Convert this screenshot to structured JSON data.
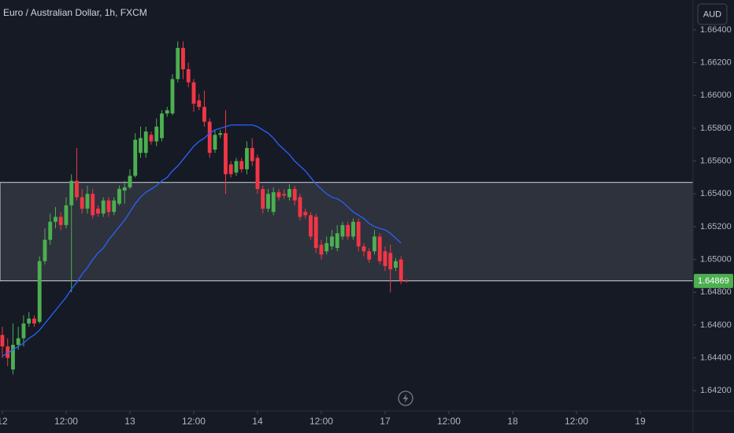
{
  "chart_data": {
    "type": "candlestick",
    "title": "Euro / Australian Dollar, 1h, FXCM",
    "currency": "AUD",
    "up_color": "#4caf50",
    "down_color": "#f23645",
    "xlim": [
      -0.44,
      129.93
    ],
    "xticks": [
      {
        "value": 0,
        "label": "12"
      },
      {
        "value": 12,
        "label": "12:00"
      },
      {
        "value": 24,
        "label": "13"
      },
      {
        "value": 36,
        "label": "12:00"
      },
      {
        "value": 48,
        "label": "14"
      },
      {
        "value": 60,
        "label": "12:00"
      },
      {
        "value": 72,
        "label": "17"
      },
      {
        "value": 84,
        "label": "12:00"
      },
      {
        "value": 96,
        "label": "18"
      },
      {
        "value": 108,
        "label": "12:00"
      },
      {
        "value": 120,
        "label": "19"
      }
    ],
    "ylim": [
      1.64096,
      1.66582
    ],
    "yticks": [
      {
        "value": 1.642,
        "label": "1.64200"
      },
      {
        "value": 1.644,
        "label": "1.64400"
      },
      {
        "value": 1.646,
        "label": "1.64600"
      },
      {
        "value": 1.648,
        "label": "1.64800"
      },
      {
        "value": 1.65,
        "label": "1.65000"
      },
      {
        "value": 1.652,
        "label": "1.65200"
      },
      {
        "value": 1.654,
        "label": "1.65400"
      },
      {
        "value": 1.656,
        "label": "1.65600"
      },
      {
        "value": 1.658,
        "label": "1.65800"
      },
      {
        "value": 1.66,
        "label": "1.66000"
      },
      {
        "value": 1.662,
        "label": "1.66200"
      },
      {
        "value": 1.664,
        "label": "1.66400"
      }
    ],
    "open": [
      1.6454,
      1.6447,
      1.6433,
      1.6448,
      1.6452,
      1.6461,
      1.6464,
      1.6462,
      1.6499,
      1.6512,
      1.6523,
      1.6526,
      1.6521,
      1.6533,
      1.6548,
      1.6538,
      1.6531,
      1.654,
      1.6531,
      1.6528,
      1.6536,
      1.6529,
      1.6534,
      1.6542,
      1.6544,
      1.6551,
      1.6565,
      1.6565,
      1.6576,
      1.6572,
      1.6574,
      1.6589,
      1.6589,
      1.661,
      1.6629,
      1.6616,
      1.6608,
      1.6597,
      1.6593,
      1.6584,
      1.6567,
      1.6576,
      1.6577,
      1.6558,
      1.6553,
      1.656,
      1.6555,
      1.6568,
      1.6562,
      1.6543,
      1.6531,
      1.6529,
      1.6541,
      1.654,
      1.6538,
      1.6543,
      1.6538,
      1.6529,
      1.6527,
      1.6526,
      1.6509,
      1.6505,
      1.6508,
      1.6507,
      1.6514,
      1.6521,
      1.6514,
      1.6523,
      1.6508,
      1.6505,
      1.6505,
      1.6514,
      1.6505,
      1.6504,
      1.6495,
      1.65,
      1.6487
    ],
    "high": [
      1.6459,
      1.6452,
      1.6461,
      1.6459,
      1.6466,
      1.6468,
      1.6466,
      1.6502,
      1.6519,
      1.6528,
      1.6532,
      1.6529,
      1.6538,
      1.6552,
      1.6568,
      1.6543,
      1.6545,
      1.6543,
      1.6533,
      1.6538,
      1.6538,
      1.6538,
      1.6545,
      1.6548,
      1.6555,
      1.6577,
      1.6581,
      1.6581,
      1.6578,
      1.6586,
      1.6591,
      1.6593,
      1.6613,
      1.6633,
      1.6633,
      1.662,
      1.661,
      1.6601,
      1.6603,
      1.6586,
      1.6579,
      1.6579,
      1.6591,
      1.656,
      1.6562,
      1.6562,
      1.6572,
      1.6574,
      1.6564,
      1.6545,
      1.6543,
      1.6544,
      1.6543,
      1.6543,
      1.6546,
      1.6545,
      1.654,
      1.6531,
      1.6529,
      1.6528,
      1.6512,
      1.6514,
      1.6518,
      1.6521,
      1.6523,
      1.6523,
      1.6525,
      1.6525,
      1.651,
      1.6507,
      1.6518,
      1.6516,
      1.6508,
      1.6509,
      1.6501,
      1.6502,
      1.6488
    ],
    "low": [
      1.644,
      1.6435,
      1.643,
      1.6445,
      1.6447,
      1.6459,
      1.6459,
      1.6461,
      1.6497,
      1.6509,
      1.6519,
      1.6518,
      1.6519,
      1.648,
      1.6536,
      1.6528,
      1.6528,
      1.6525,
      1.6526,
      1.6526,
      1.6526,
      1.6527,
      1.6533,
      1.6534,
      1.6543,
      1.655,
      1.6562,
      1.6562,
      1.657,
      1.6569,
      1.6572,
      1.6587,
      1.6588,
      1.6608,
      1.661,
      1.6605,
      1.659,
      1.6591,
      1.6581,
      1.6562,
      1.6565,
      1.6574,
      1.654,
      1.655,
      1.6551,
      1.6553,
      1.6552,
      1.6557,
      1.654,
      1.6528,
      1.6529,
      1.6527,
      1.6536,
      1.6537,
      1.6536,
      1.6533,
      1.6524,
      1.6525,
      1.6512,
      1.6504,
      1.65,
      1.6503,
      1.6506,
      1.6505,
      1.6512,
      1.6512,
      1.6512,
      1.6505,
      1.6502,
      1.6498,
      1.6503,
      1.6497,
      1.6493,
      1.648,
      1.6493,
      1.6485,
      1.6486
    ],
    "close": [
      1.6447,
      1.644,
      1.6448,
      1.6452,
      1.6461,
      1.6464,
      1.6461,
      1.6499,
      1.6512,
      1.6523,
      1.6526,
      1.6521,
      1.6533,
      1.6548,
      1.6538,
      1.6531,
      1.654,
      1.6527,
      1.6528,
      1.6536,
      1.6529,
      1.6536,
      1.6543,
      1.6544,
      1.6551,
      1.6573,
      1.6574,
      1.6578,
      1.6572,
      1.6581,
      1.6589,
      1.6591,
      1.661,
      1.6629,
      1.6616,
      1.6608,
      1.6595,
      1.6593,
      1.6584,
      1.6565,
      1.6576,
      1.6577,
      1.6552,
      1.6552,
      1.656,
      1.6555,
      1.6568,
      1.656,
      1.6543,
      1.6531,
      1.654,
      1.6541,
      1.6538,
      1.6539,
      1.6543,
      1.6536,
      1.6526,
      1.6527,
      1.6514,
      1.6507,
      1.6503,
      1.651,
      1.6514,
      1.6516,
      1.6521,
      1.6514,
      1.6523,
      1.6508,
      1.6505,
      1.65,
      1.6514,
      1.6499,
      1.6496,
      1.6494,
      1.6499,
      1.6487,
      1.64869
    ],
    "ma": {
      "color": "#2962ff",
      "values": [
        1.6441,
        1.6443,
        1.6445,
        1.6447,
        1.6449,
        1.6452,
        1.6454,
        1.6457,
        1.6461,
        1.6465,
        1.6469,
        1.6473,
        1.6477,
        1.6482,
        1.6486,
        1.6491,
        1.6495,
        1.65,
        1.6504,
        1.6507,
        1.6512,
        1.6516,
        1.652,
        1.6524,
        1.6529,
        1.6534,
        1.6538,
        1.6541,
        1.6543,
        1.6545,
        1.6548,
        1.655,
        1.6554,
        1.6557,
        1.6561,
        1.6565,
        1.6569,
        1.6572,
        1.6574,
        1.6577,
        1.6579,
        1.658,
        1.6581,
        1.6582,
        1.6582,
        1.6582,
        1.6582,
        1.6582,
        1.6581,
        1.6579,
        1.6577,
        1.6574,
        1.657,
        1.6567,
        1.6564,
        1.656,
        1.6557,
        1.6554,
        1.655,
        1.6546,
        1.6543,
        1.654,
        1.6538,
        1.6537,
        1.6535,
        1.6532,
        1.6529,
        1.6527,
        1.6525,
        1.6522,
        1.652,
        1.6519,
        1.6518,
        1.6516,
        1.6513,
        1.651,
        null
      ]
    },
    "zone": {
      "low": 1.6487,
      "high": 1.6547
    },
    "last_price": 1.64869
  }
}
